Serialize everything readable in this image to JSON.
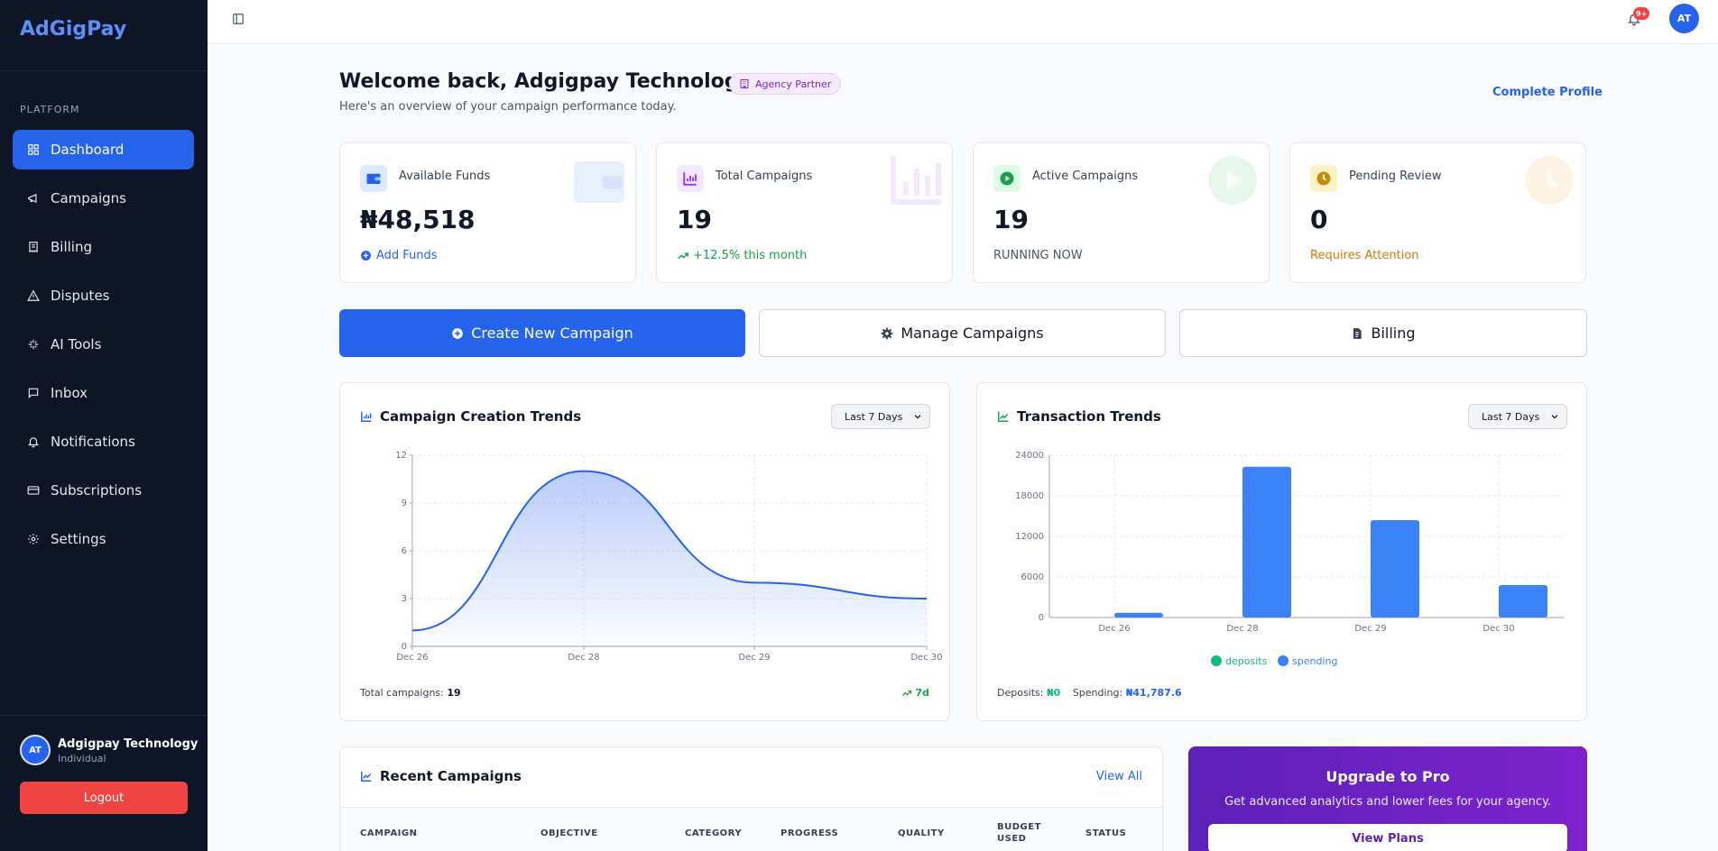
{
  "app": {
    "brand": "AdGigPay"
  },
  "sidebar": {
    "section_label": "PLATFORM",
    "items": [
      {
        "label": "Dashboard",
        "icon": "grid-icon",
        "active": true
      },
      {
        "label": "Campaigns",
        "icon": "megaphone-icon"
      },
      {
        "label": "Billing",
        "icon": "receipt-icon"
      },
      {
        "label": "Disputes",
        "icon": "alert-triangle-icon"
      },
      {
        "label": "AI Tools",
        "icon": "sparkles-icon"
      },
      {
        "label": "Inbox",
        "icon": "message-icon"
      },
      {
        "label": "Notifications",
        "icon": "bell-icon"
      },
      {
        "label": "Subscriptions",
        "icon": "credit-card-icon"
      },
      {
        "label": "Settings",
        "icon": "gear-icon"
      }
    ],
    "user": {
      "initials": "AT",
      "name": "Adgigpay Technology",
      "role": "Individual"
    },
    "logout_label": "Logout"
  },
  "topbar": {
    "notification_badge": "9+",
    "avatar_initials": "AT"
  },
  "header": {
    "welcome": "Welcome back, Adgigpay Technology",
    "badge": "Agency Partner",
    "subtitle": "Here's an overview of your campaign performance today.",
    "complete_profile": "Complete Profile"
  },
  "stats": [
    {
      "label": "Available Funds",
      "value": "₦48,518",
      "foot": "Add Funds",
      "color": "#2563eb"
    },
    {
      "label": "Total Campaigns",
      "value": "19",
      "foot": "+12.5% this month",
      "color": "#16a34a"
    },
    {
      "label": "Active Campaigns",
      "value": "19",
      "foot": "RUNNING NOW",
      "color": "#4b5563"
    },
    {
      "label": "Pending Review",
      "value": "0",
      "foot": "Requires Attention",
      "color": "#d97706"
    }
  ],
  "actions": {
    "create": "Create New Campaign",
    "manage": "Manage Campaigns",
    "billing": "Billing"
  },
  "campaign_chart": {
    "title": "Campaign Creation Trends",
    "range": "Last 7 Days",
    "foot_label": "Total campaigns:",
    "foot_value": "19",
    "foot_right": "7d"
  },
  "transaction_chart": {
    "title": "Transaction Trends",
    "range": "Last 7 Days",
    "deposits_label": "Deposits:",
    "deposits_value": "₦0",
    "spending_label": "Spending:",
    "spending_value": "₦41,787.6"
  },
  "chart_data": [
    {
      "type": "area",
      "title": "Campaign Creation Trends",
      "x": [
        "Dec 26",
        "Dec 28",
        "Dec 29",
        "Dec 30"
      ],
      "values": [
        1,
        11,
        4,
        3
      ],
      "yticks": [
        0,
        3,
        6,
        9,
        12
      ],
      "ylim": [
        0,
        12
      ],
      "grid": true,
      "color": "#2563eb"
    },
    {
      "type": "bar",
      "title": "Transaction Trends",
      "categories": [
        "Dec 26",
        "Dec 28",
        "Dec 29",
        "Dec 30"
      ],
      "series": [
        {
          "name": "deposits",
          "values": [
            0,
            0,
            0,
            0
          ],
          "color": "#10b981"
        },
        {
          "name": "spending",
          "values": [
            700,
            22300,
            14400,
            4800
          ],
          "color": "#3b82f6"
        }
      ],
      "yticks": [
        0,
        6000,
        12000,
        18000,
        24000
      ],
      "ylim": [
        0,
        24000
      ],
      "grid": true,
      "legend": "bottom"
    }
  ],
  "recent": {
    "title": "Recent Campaigns",
    "view_all": "View All",
    "columns": [
      "CAMPAIGN",
      "OBJECTIVE",
      "CATEGORY",
      "PROGRESS",
      "QUALITY",
      "BUDGET USED",
      "STATUS"
    ]
  },
  "upgrade": {
    "title": "Upgrade to Pro",
    "subtitle": "Get advanced analytics and lower fees for your agency.",
    "button": "View Plans"
  }
}
